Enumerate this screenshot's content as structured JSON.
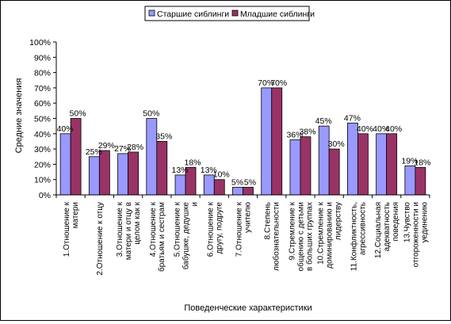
{
  "chart_data": {
    "type": "bar",
    "ylabel": "Средние значения",
    "xlabel": "Поведенческие характеристики",
    "ylim": [
      0,
      100
    ],
    "yticks": [
      "0%",
      "10%",
      "20%",
      "30%",
      "40%",
      "50%",
      "60%",
      "70%",
      "80%",
      "90%",
      "100%"
    ],
    "legend_position": "top",
    "grid": false,
    "categories": [
      [
        "1.Отношение к",
        "матери"
      ],
      [
        "2.Отношение к отцу"
      ],
      [
        "3.Отношение к",
        "матери и отцу в",
        "целом как к"
      ],
      [
        "4.Отношение к",
        "братьям и сестрам"
      ],
      [
        "5.Отношение к",
        "бабушке, дедушке",
        "и"
      ],
      [
        "6.Отношение к",
        "другу, подруге"
      ],
      [
        "7.Отношение к",
        "учителю"
      ],
      [
        "8.Степень",
        "любознательности"
      ],
      [
        "9.Стремление к",
        "общению с детьми",
        "в больших группах"
      ],
      [
        "10.Стремление к",
        "доминированию и",
        "лидерству"
      ],
      [
        "11.Конфликтность,",
        "агрессивность"
      ],
      [
        "12.Социальная",
        "адекватность",
        "поведения"
      ],
      [
        "13.Чувство",
        "отгороженности и",
        "уединению"
      ]
    ],
    "series": [
      {
        "name": "Старшие сиблинги",
        "color": "#9999ff",
        "values": [
          40,
          25,
          27,
          50,
          13,
          13,
          5,
          70,
          36,
          45,
          47,
          40,
          19
        ]
      },
      {
        "name": "Младшие сиблинги",
        "color": "#993366",
        "values": [
          50,
          29,
          28,
          35,
          18,
          10,
          5,
          70,
          38,
          30,
          40,
          40,
          18
        ]
      }
    ],
    "data_labels": [
      [
        "40%",
        "25%",
        "27%",
        "50%",
        "13%",
        "13%",
        "5%",
        "70%",
        "36%",
        "45%",
        "47%",
        "40%",
        "19%"
      ],
      [
        "50%",
        "29%",
        "28%",
        "35%",
        "18%",
        "10%",
        "5%",
        "70%",
        "38%",
        "30%",
        "40%",
        "40%",
        "18%"
      ]
    ]
  }
}
